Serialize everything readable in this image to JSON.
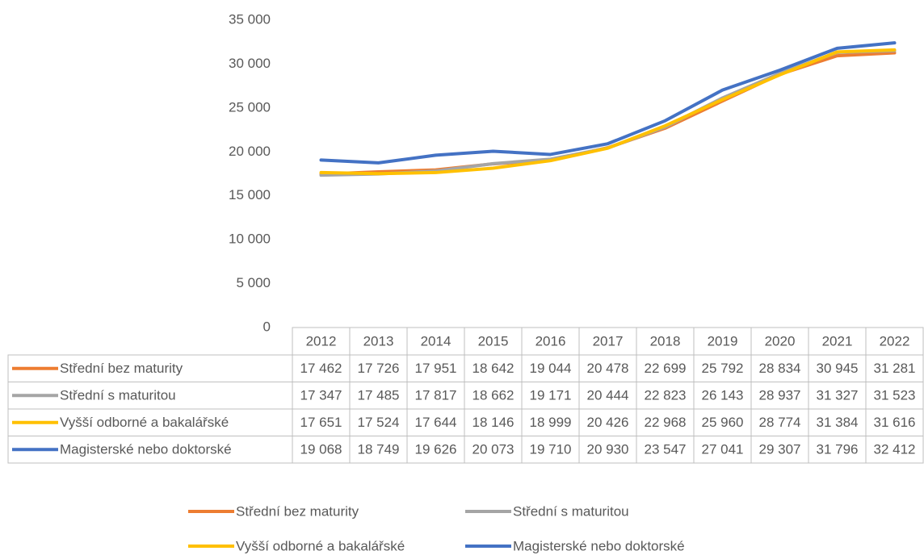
{
  "chart_data": {
    "type": "line",
    "categories": [
      "2012",
      "2013",
      "2014",
      "2015",
      "2016",
      "2017",
      "2018",
      "2019",
      "2020",
      "2021",
      "2022"
    ],
    "series": [
      {
        "name": "Střední bez maturity",
        "color": "#ed7d31",
        "values": [
          17462,
          17726,
          17951,
          18642,
          19044,
          20478,
          22699,
          25792,
          28834,
          30945,
          31281
        ],
        "value_labels": [
          "17 462",
          "17 726",
          "17 951",
          "18 642",
          "19 044",
          "20 478",
          "22 699",
          "25 792",
          "28 834",
          "30 945",
          "31 281"
        ]
      },
      {
        "name": "Střední s maturitou",
        "color": "#a5a5a5",
        "values": [
          17347,
          17485,
          17817,
          18662,
          19171,
          20444,
          22823,
          26143,
          28937,
          31327,
          31523
        ],
        "value_labels": [
          "17 347",
          "17 485",
          "17 817",
          "18 662",
          "19 171",
          "20 444",
          "22 823",
          "26 143",
          "28 937",
          "31 327",
          "31 523"
        ]
      },
      {
        "name": "Vyšší odborné a bakalářské",
        "color": "#ffc000",
        "values": [
          17651,
          17524,
          17644,
          18146,
          18999,
          20426,
          22968,
          25960,
          28774,
          31384,
          31616
        ],
        "value_labels": [
          "17 651",
          "17 524",
          "17 644",
          "18 146",
          "18 999",
          "20 426",
          "22 968",
          "25 960",
          "28 774",
          "31 384",
          "31 616"
        ]
      },
      {
        "name": "Magisterské nebo doktorské",
        "color": "#4472c4",
        "values": [
          19068,
          18749,
          19626,
          20073,
          19710,
          20930,
          23547,
          27041,
          29307,
          31796,
          32412
        ],
        "value_labels": [
          "19 068",
          "18 749",
          "19 626",
          "20 073",
          "19 710",
          "20 930",
          "23 547",
          "27 041",
          "29 307",
          "31 796",
          "32 412"
        ]
      }
    ],
    "ylim": [
      0,
      35000
    ],
    "yticks": [
      0,
      {
        "value": 5000,
        "label": "5 000"
      },
      {
        "value": 10000,
        "label": "10 000"
      },
      {
        "value": 15000,
        "label": "15 000"
      },
      {
        "value": 20000,
        "label": "20 000"
      },
      {
        "value": 25000,
        "label": "25 000"
      },
      {
        "value": 30000,
        "label": "30 000"
      },
      {
        "value": 35000,
        "label": "35 000"
      }
    ],
    "grid": false,
    "legend": "bottom"
  }
}
